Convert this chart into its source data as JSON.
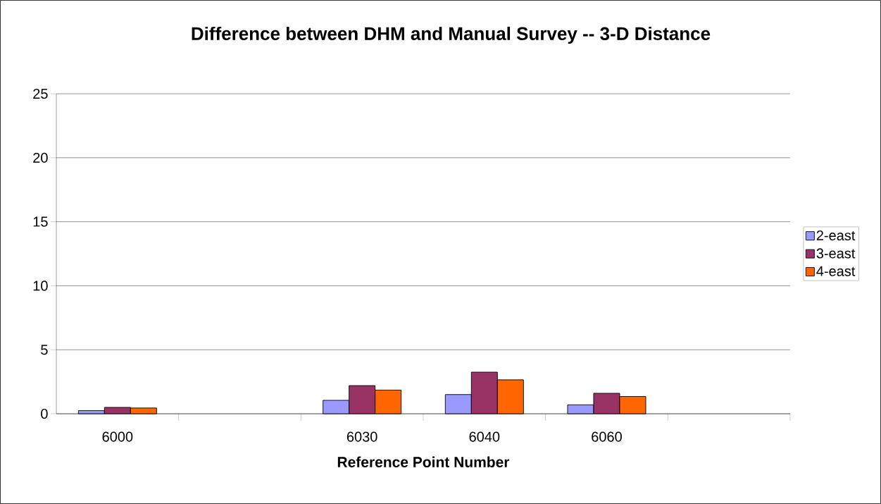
{
  "chart_data": {
    "type": "bar",
    "title": "Difference between DHM and Manual Survey -- 3-D Distance",
    "xlabel": "Reference Point Number",
    "categories": [
      "6000",
      null,
      "6030",
      "6040",
      "6060",
      null
    ],
    "series": [
      {
        "name": "2-east",
        "color": "#9999ff",
        "values": [
          0.25,
          null,
          1.05,
          1.5,
          0.7,
          null
        ]
      },
      {
        "name": "3-east",
        "color": "#993366",
        "values": [
          0.5,
          null,
          2.2,
          3.25,
          1.6,
          null
        ]
      },
      {
        "name": "4-east",
        "color": "#ff6600",
        "values": [
          0.45,
          null,
          1.85,
          2.65,
          1.35,
          null
        ]
      }
    ],
    "ylim": [
      0,
      25
    ],
    "yticks": [
      0,
      5,
      10,
      15,
      20,
      25
    ],
    "grid": "y",
    "legend": "right"
  }
}
